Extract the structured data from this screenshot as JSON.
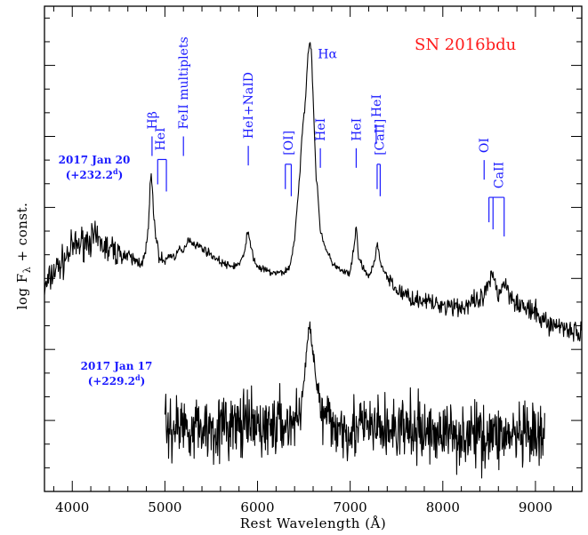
{
  "chart_data": {
    "type": "line",
    "title": "SN 2016bdu",
    "xlabel": "Rest Wavelength (Å)",
    "ylabel_main": "log F",
    "ylabel_sub": "λ",
    "ylabel_rest": " + const.",
    "xlim": [
      3700,
      9500
    ],
    "x_ticks": [
      4000,
      5000,
      6000,
      7000,
      8000,
      9000
    ],
    "x_tick_labels": [
      "4000",
      "5000",
      "6000",
      "7000",
      "8000",
      "9000"
    ],
    "grid": false,
    "series": [
      {
        "epoch": "2017 Jan 20",
        "phase": "(+232.2",
        "phase_sup": "d",
        "phase_close": ")",
        "x": [
          3700,
          3800,
          3900,
          4000,
          4100,
          4200,
          4300,
          4400,
          4500,
          4600,
          4700,
          4780,
          4820,
          4850,
          4880,
          4920,
          4960,
          5000,
          5050,
          5100,
          5150,
          5200,
          5250,
          5300,
          5400,
          5500,
          5600,
          5700,
          5800,
          5850,
          5890,
          5920,
          5960,
          6000,
          6100,
          6200,
          6300,
          6350,
          6400,
          6450,
          6480,
          6520,
          6540,
          6563,
          6580,
          6600,
          6630,
          6680,
          6750,
          6800,
          6900,
          7000,
          7050,
          7065,
          7090,
          7150,
          7200,
          7250,
          7291,
          7310,
          7330,
          7400,
          7500,
          7600,
          7700,
          7800,
          7900,
          8000,
          8100,
          8200,
          8300,
          8400,
          8450,
          8500,
          8540,
          8570,
          8600,
          8662,
          8700,
          8800,
          8900,
          9000,
          9100,
          9200,
          9300,
          9400,
          9500
        ],
        "y": [
          0.3,
          0.38,
          0.42,
          0.48,
          0.5,
          0.52,
          0.5,
          0.47,
          0.46,
          0.44,
          0.42,
          0.43,
          0.55,
          0.8,
          0.62,
          0.47,
          0.43,
          0.42,
          0.45,
          0.44,
          0.47,
          0.46,
          0.52,
          0.5,
          0.48,
          0.45,
          0.42,
          0.4,
          0.41,
          0.44,
          0.55,
          0.5,
          0.43,
          0.4,
          0.38,
          0.37,
          0.38,
          0.4,
          0.52,
          0.75,
          0.95,
          1.12,
          1.28,
          1.36,
          1.32,
          1.12,
          0.8,
          0.55,
          0.46,
          0.42,
          0.38,
          0.37,
          0.5,
          0.58,
          0.44,
          0.38,
          0.36,
          0.4,
          0.49,
          0.47,
          0.41,
          0.35,
          0.3,
          0.28,
          0.26,
          0.26,
          0.24,
          0.24,
          0.24,
          0.23,
          0.24,
          0.25,
          0.28,
          0.32,
          0.36,
          0.33,
          0.28,
          0.34,
          0.3,
          0.25,
          0.22,
          0.2,
          0.17,
          0.15,
          0.15,
          0.13,
          0.12
        ]
      },
      {
        "epoch": "2017 Jan 17",
        "phase": "(+229.2",
        "phase_sup": "d",
        "phase_close": ")",
        "x": [
          5000,
          5200,
          5400,
          5600,
          5800,
          6000,
          6200,
          6400,
          6450,
          6500,
          6530,
          6563,
          6600,
          6640,
          6700,
          6800,
          7000,
          7200,
          7400,
          7600,
          7800,
          8000,
          8200,
          8400,
          8600,
          8800,
          9000,
          9100
        ],
        "y": [
          -0.28,
          -0.27,
          -0.28,
          -0.28,
          -0.27,
          -0.28,
          -0.27,
          -0.26,
          -0.22,
          -0.1,
          0.05,
          0.15,
          0.05,
          -0.1,
          -0.24,
          -0.27,
          -0.28,
          -0.28,
          -0.29,
          -0.29,
          -0.3,
          -0.3,
          -0.31,
          -0.31,
          -0.31,
          -0.32,
          -0.33,
          -0.34
        ]
      }
    ],
    "line_ids": [
      {
        "label": "Hβ",
        "wl": 4861,
        "y": 0.98,
        "rot": -90
      },
      {
        "label": "HeI",
        "wl": 4950,
        "y": 0.89,
        "rot": -90,
        "bracket": [
          4922,
          5016
        ]
      },
      {
        "label": "FeII multiplets",
        "wl": 5200,
        "y": 0.98,
        "rot": -90
      },
      {
        "label": "HeI+NaID",
        "wl": 5900,
        "y": 0.94,
        "rot": -90
      },
      {
        "label": "[OI]",
        "wl": 6330,
        "y": 0.87,
        "rot": -90,
        "bracket": [
          6300,
          6364
        ]
      },
      {
        "label": "Hα",
        "wl": 6563,
        "y": 1.25,
        "rot": 0
      },
      {
        "label": "HeI",
        "wl": 6678,
        "y": 0.93,
        "rot": -90
      },
      {
        "label": "HeI",
        "wl": 7065,
        "y": 0.93,
        "rot": -90
      },
      {
        "label": "HeI",
        "wl": 7281,
        "y": 1.03,
        "rot": -90
      },
      {
        "label": "[CaII]",
        "wl": 7315,
        "y": 0.87,
        "rot": -90,
        "bracket": [
          7291,
          7324
        ]
      },
      {
        "label": "OI",
        "wl": 8446,
        "y": 0.88,
        "rot": -90
      },
      {
        "label": "CaII",
        "wl": 8600,
        "y": 0.73,
        "rot": -90,
        "bracket": [
          8498,
          8542,
          8662
        ]
      }
    ],
    "colors": {
      "spectrum": "#000000",
      "line_ids": "#1a1aff",
      "title": "#ff1a1a"
    }
  }
}
